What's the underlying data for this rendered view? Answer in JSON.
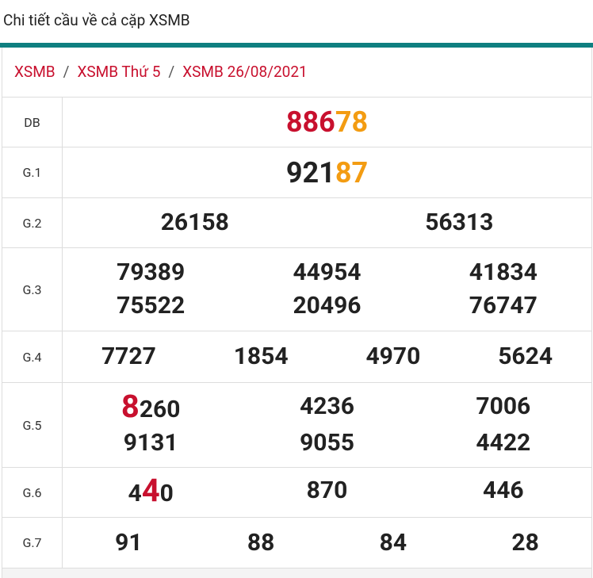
{
  "header": {
    "title": "Chi tiết cầu về cả cặp XSMB"
  },
  "breadcrumb": {
    "items": [
      "XSMB",
      "XSMB Thứ 5",
      "XSMB 26/08/2021"
    ],
    "separator": "/"
  },
  "table": {
    "rows": [
      {
        "label": "DB",
        "lines": [
          [
            [
              {
                "text": "886",
                "color": "#c8102e"
              },
              {
                "text": "78",
                "color": "#f39c12"
              }
            ]
          ]
        ]
      },
      {
        "label": "G.1",
        "lines": [
          [
            [
              {
                "text": "921"
              },
              {
                "text": "87",
                "color": "#f39c12"
              }
            ]
          ]
        ]
      },
      {
        "label": "G.2",
        "lines": [
          [
            [
              {
                "text": "26158"
              }
            ],
            [
              {
                "text": "56313"
              }
            ]
          ]
        ]
      },
      {
        "label": "G.3",
        "lines": [
          [
            [
              {
                "text": "79389"
              }
            ],
            [
              {
                "text": "44954"
              }
            ],
            [
              {
                "text": "41834"
              }
            ]
          ],
          [
            [
              {
                "text": "75522"
              }
            ],
            [
              {
                "text": "20496"
              }
            ],
            [
              {
                "text": "76747"
              }
            ]
          ]
        ]
      },
      {
        "label": "G.4",
        "lines": [
          [
            [
              {
                "text": "7727"
              }
            ],
            [
              {
                "text": "1854"
              }
            ],
            [
              {
                "text": "4970"
              }
            ],
            [
              {
                "text": "5624"
              }
            ]
          ]
        ]
      },
      {
        "label": "G.5",
        "lines": [
          [
            [
              {
                "text": "8",
                "color": "#c8102e",
                "big": true
              },
              {
                "text": "260"
              }
            ],
            [
              {
                "text": "4236"
              }
            ],
            [
              {
                "text": "7006"
              }
            ]
          ],
          [
            [
              {
                "text": "9131"
              }
            ],
            [
              {
                "text": "9055"
              }
            ],
            [
              {
                "text": "4422"
              }
            ]
          ]
        ]
      },
      {
        "label": "G.6",
        "lines": [
          [
            [
              {
                "text": "4"
              },
              {
                "text": "4",
                "color": "#c8102e",
                "big": true
              },
              {
                "text": "0"
              }
            ],
            [
              {
                "text": "870"
              }
            ],
            [
              {
                "text": "446"
              }
            ]
          ]
        ]
      },
      {
        "label": "G.7",
        "lines": [
          [
            [
              {
                "text": "91"
              }
            ],
            [
              {
                "text": "88"
              }
            ],
            [
              {
                "text": "84"
              }
            ],
            [
              {
                "text": "28"
              }
            ]
          ]
        ]
      }
    ]
  }
}
